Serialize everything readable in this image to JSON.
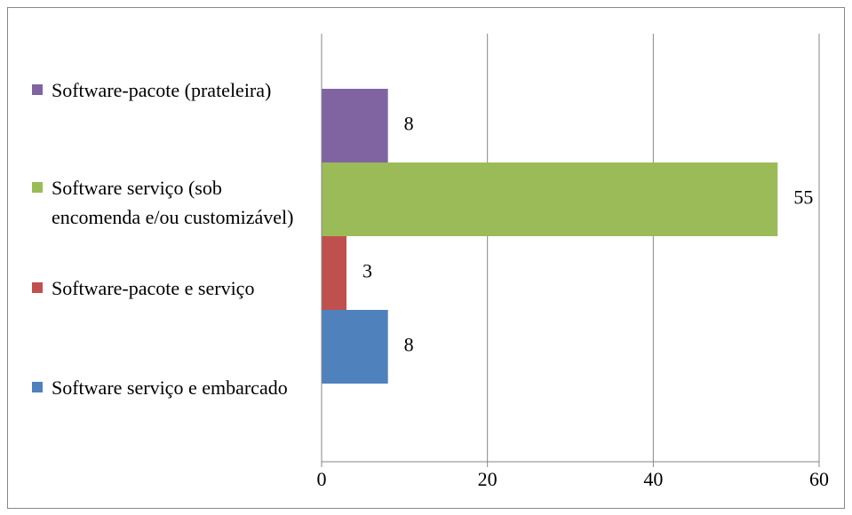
{
  "chart_data": {
    "type": "bar",
    "orientation": "horizontal",
    "categories": [
      null
    ],
    "series": [
      {
        "name": "Software-pacote (prateleira)",
        "color": "#8064a2",
        "values": [
          8
        ]
      },
      {
        "name": "Software serviço (sob encomenda e/ou customizável)",
        "color": "#9bbb59",
        "values": [
          55
        ]
      },
      {
        "name": "Software-pacote e serviço",
        "color": "#c0504d",
        "values": [
          3
        ]
      },
      {
        "name": "Software serviço e embarcado",
        "color": "#4f81bd",
        "values": [
          8
        ]
      }
    ],
    "xlim": [
      0,
      60
    ],
    "xticks": [
      0,
      20,
      40,
      60
    ],
    "grid": true,
    "legend": "left"
  }
}
